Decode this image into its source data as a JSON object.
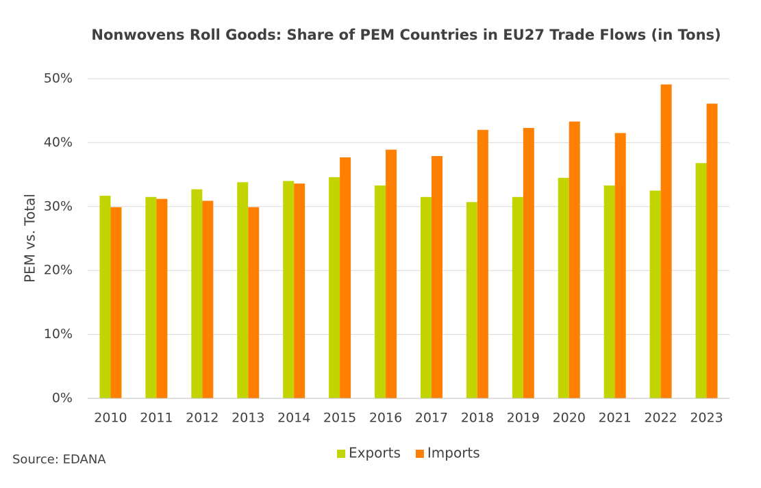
{
  "chart_data": {
    "type": "bar",
    "title": "Nonwovens Roll Goods: Share of PEM Countries in EU27 Trade Flows (in Tons)",
    "y_label": "PEM vs. Total",
    "source": "Source: EDANA",
    "categories": [
      "2010",
      "2011",
      "2012",
      "2013",
      "2014",
      "2015",
      "2016",
      "2017",
      "2018",
      "2019",
      "2020",
      "2021",
      "2022",
      "2023"
    ],
    "series": [
      {
        "name": "Exports",
        "color": "#c3d500",
        "values": [
          31.7,
          31.5,
          32.7,
          33.8,
          34.0,
          34.6,
          33.3,
          31.5,
          30.7,
          31.5,
          34.5,
          33.3,
          32.5,
          36.8
        ]
      },
      {
        "name": "Imports",
        "color": "#ff8000",
        "values": [
          29.9,
          31.2,
          30.9,
          29.9,
          33.6,
          37.7,
          38.9,
          37.9,
          42.0,
          42.3,
          43.3,
          41.5,
          49.1,
          46.1
        ]
      }
    ],
    "ylim": [
      0,
      50
    ],
    "yticks": [
      {
        "value": 0,
        "label": "0%"
      },
      {
        "value": 10,
        "label": "10%"
      },
      {
        "value": 20,
        "label": "20%"
      },
      {
        "value": 30,
        "label": "30%"
      },
      {
        "value": 40,
        "label": "40%"
      },
      {
        "value": 50,
        "label": "50%"
      }
    ],
    "grid": true,
    "legend": "bottom"
  }
}
